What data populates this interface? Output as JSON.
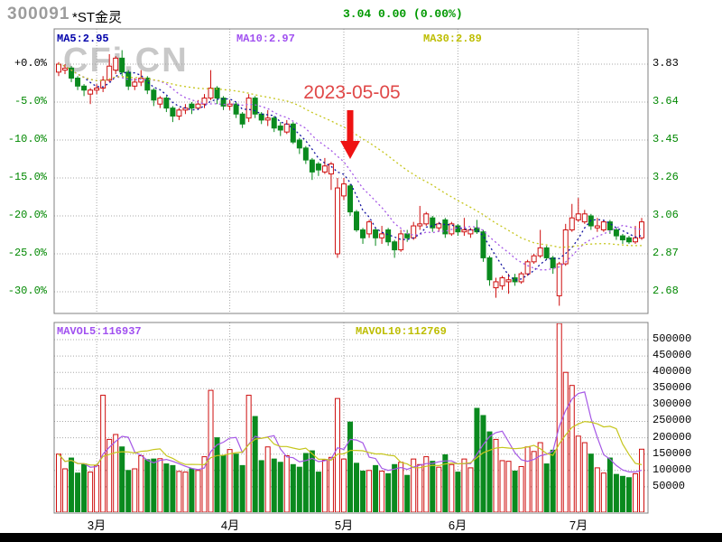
{
  "header": {
    "stock_code": "300091",
    "stock_name": "*ST金灵",
    "quote": "3.04 0.00 (0.00%)"
  },
  "watermark": "CFi.CN",
  "colors": {
    "up": "#CE0E0E",
    "down": "#0A8A1E",
    "ma5": "#1414A0",
    "ma10": "#A659E6",
    "ma30": "#C6C61E",
    "mavol5": "#A659E6",
    "mavol10": "#C6C61E",
    "ma5_label": "#0000AA",
    "ma10_label": "#A050F0",
    "ma30_label": "#BDBD00",
    "mavol5_label": "#A050F0",
    "mavol10_label": "#BDBD00",
    "grid": "#A8A8A8",
    "border": "#808080",
    "axis_green": "#008800",
    "axis_black": "#000000",
    "quote": "#009900",
    "code": "#9C9C9C",
    "watermark": "#C8C8C8",
    "annotation": "#E04848",
    "arrow": "#EE1212"
  },
  "chart_data": {
    "type": "candlestick",
    "title": "300091 *ST金灵",
    "panes": [
      "price",
      "volume"
    ],
    "legend": {
      "price": [
        {
          "text": "MA5:2.95"
        },
        {
          "text": "MA10:2.97"
        },
        {
          "text": "MA30:2.89"
        }
      ],
      "volume": [
        {
          "text": "MAVOL5:116937"
        },
        {
          "text": "MAVOL10:112769"
        }
      ]
    },
    "price_axis": {
      "base_price": 3.83,
      "percent_labels": [
        "+0.0%",
        "-5.0%",
        "-10.0%",
        "-15.0%",
        "-20.0%",
        "-25.0%",
        "-30.0%"
      ],
      "price_labels": [
        "3.83",
        "3.64",
        "3.45",
        "3.26",
        "3.06",
        "2.87",
        "2.68"
      ]
    },
    "volume_axis": {
      "labels": [
        "500000",
        "450000",
        "400000",
        "350000",
        "300000",
        "250000",
        "200000",
        "150000",
        "100000",
        "50000"
      ]
    },
    "months": [
      {
        "label": "3月",
        "candle_index": 6
      },
      {
        "label": "4月",
        "candle_index": 27
      },
      {
        "label": "5月",
        "candle_index": 45
      },
      {
        "label": "6月",
        "candle_index": 63
      },
      {
        "label": "7月",
        "candle_index": 82
      }
    ],
    "annotation": {
      "date": "2023-05-05",
      "candle_index": 46
    },
    "ma_periods_price": [
      5,
      10,
      30
    ],
    "ma_periods_volume": [
      5,
      10
    ],
    "candles": {
      "columns": [
        "open",
        "high",
        "low",
        "close",
        "volume"
      ],
      "rows": [
        [
          3.79,
          3.84,
          3.77,
          3.83,
          150000
        ],
        [
          3.8,
          3.83,
          3.78,
          3.81,
          105000
        ],
        [
          3.81,
          3.82,
          3.74,
          3.76,
          138000
        ],
        [
          3.76,
          3.77,
          3.7,
          3.72,
          92000
        ],
        [
          3.72,
          3.73,
          3.67,
          3.7,
          120000
        ],
        [
          3.68,
          3.71,
          3.63,
          3.7,
          95000
        ],
        [
          3.7,
          3.73,
          3.68,
          3.71,
          115000
        ],
        [
          3.71,
          3.77,
          3.69,
          3.75,
          330000
        ],
        [
          3.75,
          3.88,
          3.74,
          3.82,
          195000
        ],
        [
          3.8,
          3.87,
          3.78,
          3.86,
          210000
        ],
        [
          3.86,
          3.9,
          3.77,
          3.79,
          172000
        ],
        [
          3.79,
          3.8,
          3.7,
          3.72,
          100000
        ],
        [
          3.72,
          3.76,
          3.7,
          3.74,
          105000
        ],
        [
          3.74,
          3.8,
          3.72,
          3.76,
          145000
        ],
        [
          3.76,
          3.77,
          3.68,
          3.7,
          133000
        ],
        [
          3.7,
          3.71,
          3.62,
          3.65,
          135000
        ],
        [
          3.63,
          3.67,
          3.61,
          3.66,
          136000
        ],
        [
          3.66,
          3.67,
          3.59,
          3.61,
          120000
        ],
        [
          3.61,
          3.62,
          3.54,
          3.57,
          115000
        ],
        [
          3.57,
          3.61,
          3.55,
          3.6,
          97000
        ],
        [
          3.6,
          3.63,
          3.58,
          3.61,
          95000
        ],
        [
          3.63,
          3.64,
          3.58,
          3.61,
          105000
        ],
        [
          3.61,
          3.65,
          3.6,
          3.63,
          100000
        ],
        [
          3.63,
          3.68,
          3.61,
          3.66,
          142000
        ],
        [
          3.66,
          3.8,
          3.65,
          3.71,
          345000
        ],
        [
          3.71,
          3.72,
          3.63,
          3.66,
          200000
        ],
        [
          3.66,
          3.67,
          3.6,
          3.62,
          145000
        ],
        [
          3.62,
          3.65,
          3.6,
          3.63,
          164000
        ],
        [
          3.63,
          3.64,
          3.56,
          3.58,
          150000
        ],
        [
          3.58,
          3.59,
          3.51,
          3.53,
          115000
        ],
        [
          3.56,
          3.68,
          3.54,
          3.66,
          330000
        ],
        [
          3.66,
          3.67,
          3.56,
          3.58,
          265000
        ],
        [
          3.58,
          3.59,
          3.53,
          3.55,
          130000
        ],
        [
          3.55,
          3.6,
          3.52,
          3.56,
          172000
        ],
        [
          3.56,
          3.57,
          3.49,
          3.51,
          135000
        ],
        [
          3.52,
          3.54,
          3.47,
          3.5,
          125000
        ],
        [
          3.49,
          3.55,
          3.48,
          3.53,
          145000
        ],
        [
          3.53,
          3.54,
          3.43,
          3.44,
          118000
        ],
        [
          3.45,
          3.46,
          3.38,
          3.41,
          110000
        ],
        [
          3.41,
          3.42,
          3.33,
          3.35,
          152000
        ],
        [
          3.35,
          3.36,
          3.25,
          3.29,
          160000
        ],
        [
          3.33,
          3.34,
          3.27,
          3.3,
          95000
        ],
        [
          3.29,
          3.36,
          3.28,
          3.32,
          132000
        ],
        [
          3.28,
          3.34,
          3.2,
          3.33,
          140000
        ],
        [
          2.88,
          3.26,
          2.86,
          3.21,
          320000
        ],
        [
          3.17,
          3.26,
          3.15,
          3.23,
          135000
        ],
        [
          3.22,
          3.23,
          3.07,
          3.09,
          248000
        ],
        [
          3.09,
          3.1,
          2.99,
          3.0,
          122000
        ],
        [
          3.0,
          3.01,
          2.93,
          2.96,
          98000
        ],
        [
          2.98,
          3.05,
          2.96,
          3.04,
          100000
        ],
        [
          3.0,
          3.01,
          2.92,
          2.96,
          115000
        ],
        [
          2.96,
          3.02,
          2.93,
          2.98,
          98000
        ],
        [
          3.0,
          3.01,
          2.92,
          2.94,
          90000
        ],
        [
          2.94,
          2.95,
          2.86,
          2.9,
          118000
        ],
        [
          2.9,
          3.0,
          2.89,
          2.98,
          125000
        ],
        [
          2.98,
          3.0,
          2.94,
          2.96,
          85000
        ],
        [
          2.96,
          3.04,
          2.95,
          3.02,
          135000
        ],
        [
          3.02,
          3.12,
          3.0,
          3.03,
          118000
        ],
        [
          3.03,
          3.09,
          3.02,
          3.08,
          142000
        ],
        [
          3.06,
          3.07,
          2.99,
          3.01,
          128000
        ],
        [
          3.01,
          3.04,
          2.99,
          3.03,
          110000
        ],
        [
          3.05,
          3.06,
          2.96,
          2.98,
          148000
        ],
        [
          2.98,
          3.04,
          2.97,
          3.03,
          118000
        ],
        [
          3.02,
          3.03,
          2.97,
          2.99,
          95000
        ],
        [
          2.99,
          3.06,
          2.97,
          3.0,
          135000
        ],
        [
          2.98,
          3.01,
          2.96,
          3.0,
          108000
        ],
        [
          3.01,
          3.05,
          2.98,
          2.99,
          290000
        ],
        [
          2.99,
          3.0,
          2.84,
          2.86,
          268000
        ],
        [
          2.86,
          2.87,
          2.72,
          2.75,
          218000
        ],
        [
          2.71,
          2.76,
          2.66,
          2.74,
          195000
        ],
        [
          2.72,
          2.77,
          2.7,
          2.76,
          130000
        ],
        [
          2.74,
          2.78,
          2.68,
          2.75,
          128000
        ],
        [
          2.76,
          2.78,
          2.72,
          2.74,
          98000
        ],
        [
          2.74,
          2.79,
          2.73,
          2.78,
          112000
        ],
        [
          2.78,
          2.85,
          2.77,
          2.84,
          172000
        ],
        [
          2.84,
          2.88,
          2.83,
          2.87,
          158000
        ],
        [
          2.87,
          3.0,
          2.86,
          2.91,
          185000
        ],
        [
          2.91,
          2.92,
          2.85,
          2.86,
          120000
        ],
        [
          2.86,
          2.87,
          2.78,
          2.81,
          162000
        ],
        [
          2.67,
          2.84,
          2.62,
          2.83,
          550000
        ],
        [
          2.83,
          3.03,
          2.82,
          3.0,
          400000
        ],
        [
          3.0,
          3.13,
          2.99,
          3.06,
          360000
        ],
        [
          3.05,
          3.16,
          3.04,
          3.08,
          205000
        ],
        [
          3.04,
          3.1,
          3.03,
          3.08,
          185000
        ],
        [
          3.07,
          3.08,
          3.0,
          3.02,
          150000
        ],
        [
          3.01,
          3.06,
          2.99,
          3.02,
          108000
        ],
        [
          3.0,
          3.05,
          2.99,
          3.04,
          92000
        ],
        [
          3.04,
          3.05,
          2.98,
          3.0,
          138000
        ],
        [
          3.0,
          3.01,
          2.95,
          2.97,
          88000
        ],
        [
          2.97,
          2.98,
          2.93,
          2.95,
          82000
        ],
        [
          2.96,
          2.97,
          2.93,
          2.94,
          78000
        ],
        [
          2.94,
          3.02,
          2.93,
          2.96,
          90000
        ],
        [
          2.96,
          3.06,
          2.95,
          3.04,
          165000
        ]
      ]
    }
  }
}
